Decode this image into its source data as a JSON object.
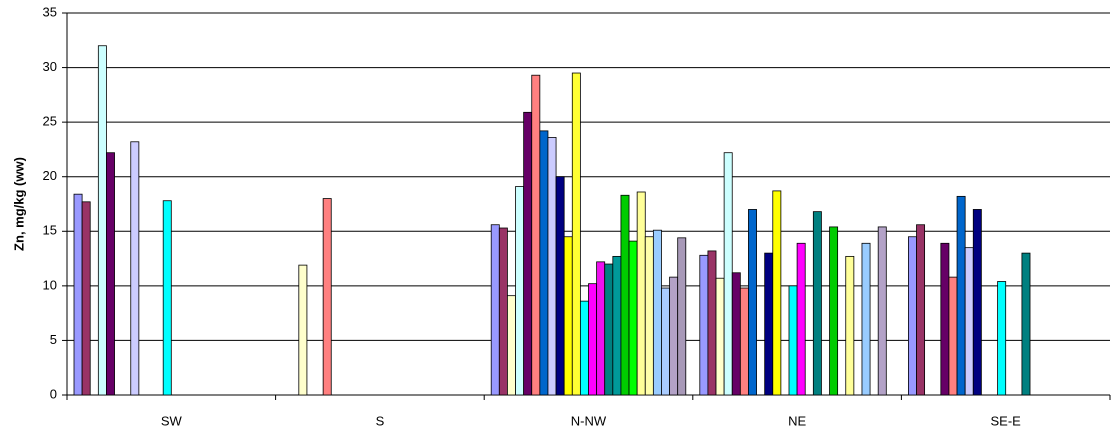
{
  "chart_data": {
    "type": "bar",
    "y_label": "Zn, mg/kg (ww)",
    "categories": [
      "SW",
      "S",
      "N-NW",
      "NE",
      "SE-E"
    ],
    "ylim": [
      0,
      35
    ],
    "yticks": [
      0,
      5,
      10,
      15,
      20,
      25,
      30,
      35
    ],
    "grid": true,
    "series": [
      {
        "color": "#9999FF",
        "values": [
          18.4,
          null,
          15.6,
          12.8,
          14.5
        ]
      },
      {
        "color": "#993366",
        "values": [
          17.7,
          null,
          15.3,
          13.2,
          15.6
        ]
      },
      {
        "color": "#FFFFCC",
        "values": [
          null,
          11.9,
          9.1,
          10.7,
          null
        ]
      },
      {
        "color": "#CCFFFF",
        "values": [
          32.0,
          null,
          19.1,
          22.2,
          null
        ]
      },
      {
        "color": "#660066",
        "values": [
          22.2,
          null,
          25.9,
          11.2,
          13.9
        ]
      },
      {
        "color": "#FF8080",
        "values": [
          null,
          18.0,
          29.3,
          9.8,
          10.8
        ]
      },
      {
        "color": "#0066CC",
        "values": [
          null,
          null,
          24.2,
          17.0,
          18.2
        ]
      },
      {
        "color": "#CCCCFF",
        "values": [
          23.2,
          null,
          23.6,
          null,
          13.5
        ]
      },
      {
        "color": "#000080",
        "values": [
          null,
          null,
          20.0,
          13.0,
          17.0
        ]
      },
      {
        "color": "#FFFF00",
        "values": [
          null,
          null,
          14.5,
          18.7,
          null
        ]
      },
      {
        "color": "#FFFF33",
        "values": [
          null,
          null,
          29.5,
          null,
          null
        ]
      },
      {
        "color": "#00FFFF",
        "values": [
          17.8,
          null,
          8.6,
          10.0,
          10.4
        ]
      },
      {
        "color": "#FF00FF",
        "values": [
          null,
          null,
          10.2,
          13.9,
          null
        ]
      },
      {
        "color": "#EE11EE",
        "values": [
          null,
          null,
          12.2,
          null,
          null
        ]
      },
      {
        "color": "#008080",
        "values": [
          null,
          null,
          12.0,
          16.8,
          13.0
        ]
      },
      {
        "color": "#009999",
        "values": [
          null,
          null,
          12.7,
          null,
          null
        ]
      },
      {
        "color": "#00CC00",
        "values": [
          null,
          null,
          18.3,
          15.4,
          null
        ]
      },
      {
        "color": "#00FF00",
        "values": [
          null,
          null,
          14.1,
          null,
          null
        ]
      },
      {
        "color": "#FFFF99",
        "values": [
          null,
          null,
          18.6,
          12.7,
          null
        ]
      },
      {
        "color": "#FFFFAA",
        "values": [
          null,
          null,
          14.5,
          null,
          null
        ]
      },
      {
        "color": "#99CCFF",
        "values": [
          null,
          null,
          15.1,
          13.9,
          null
        ]
      },
      {
        "color": "#AACCFF",
        "values": [
          null,
          null,
          9.8,
          null,
          null
        ]
      },
      {
        "color": "#B3A2C7",
        "values": [
          null,
          null,
          10.8,
          15.4,
          null
        ]
      },
      {
        "color": "#A899B8",
        "values": [
          null,
          null,
          14.4,
          null,
          null
        ]
      }
    ]
  }
}
